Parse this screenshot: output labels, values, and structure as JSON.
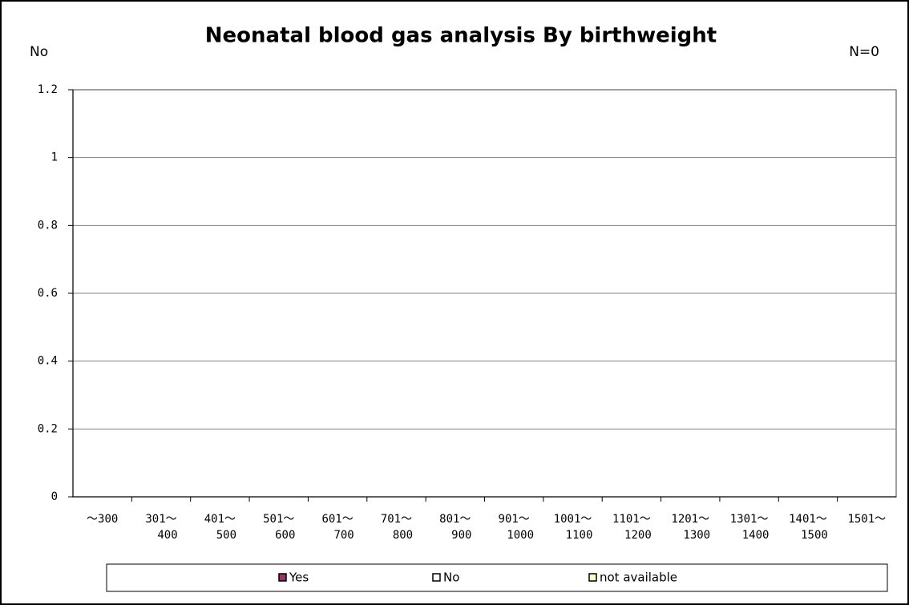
{
  "chart_data": {
    "type": "bar",
    "stacked": true,
    "title": "Neonatal blood gas analysis By birthweight",
    "y_label": "No",
    "annotation": "N=0",
    "categories": [
      [
        "～300"
      ],
      [
        "301～",
        "400"
      ],
      [
        "401～",
        "500"
      ],
      [
        "501～",
        "600"
      ],
      [
        "601～",
        "700"
      ],
      [
        "701～",
        "800"
      ],
      [
        "801～",
        "900"
      ],
      [
        "901～",
        "1000"
      ],
      [
        "1001～",
        "1100"
      ],
      [
        "1101～",
        "1200"
      ],
      [
        "1201～",
        "1300"
      ],
      [
        "1301～",
        "1400"
      ],
      [
        "1401～",
        "1500"
      ],
      [
        "1501～"
      ]
    ],
    "series": [
      {
        "name": "Yes",
        "color": "#993366",
        "values": [
          0,
          0,
          0,
          0,
          0,
          0,
          0,
          0,
          0,
          0,
          0,
          0,
          0,
          0
        ]
      },
      {
        "name": "No",
        "color": "#ffffff",
        "values": [
          0,
          0,
          0,
          0,
          0,
          0,
          0,
          0,
          0,
          0,
          0,
          0,
          0,
          0
        ]
      },
      {
        "name": "not available",
        "color": "#ffffcc",
        "values": [
          0,
          0,
          0,
          0,
          0,
          0,
          0,
          0,
          0,
          0,
          0,
          0,
          0,
          0
        ]
      }
    ],
    "ylim": [
      0,
      1.2
    ],
    "yticks": [
      0,
      0.2,
      0.4,
      0.6,
      0.8,
      1,
      1.2
    ],
    "grid": true,
    "legend": "bottom"
  }
}
